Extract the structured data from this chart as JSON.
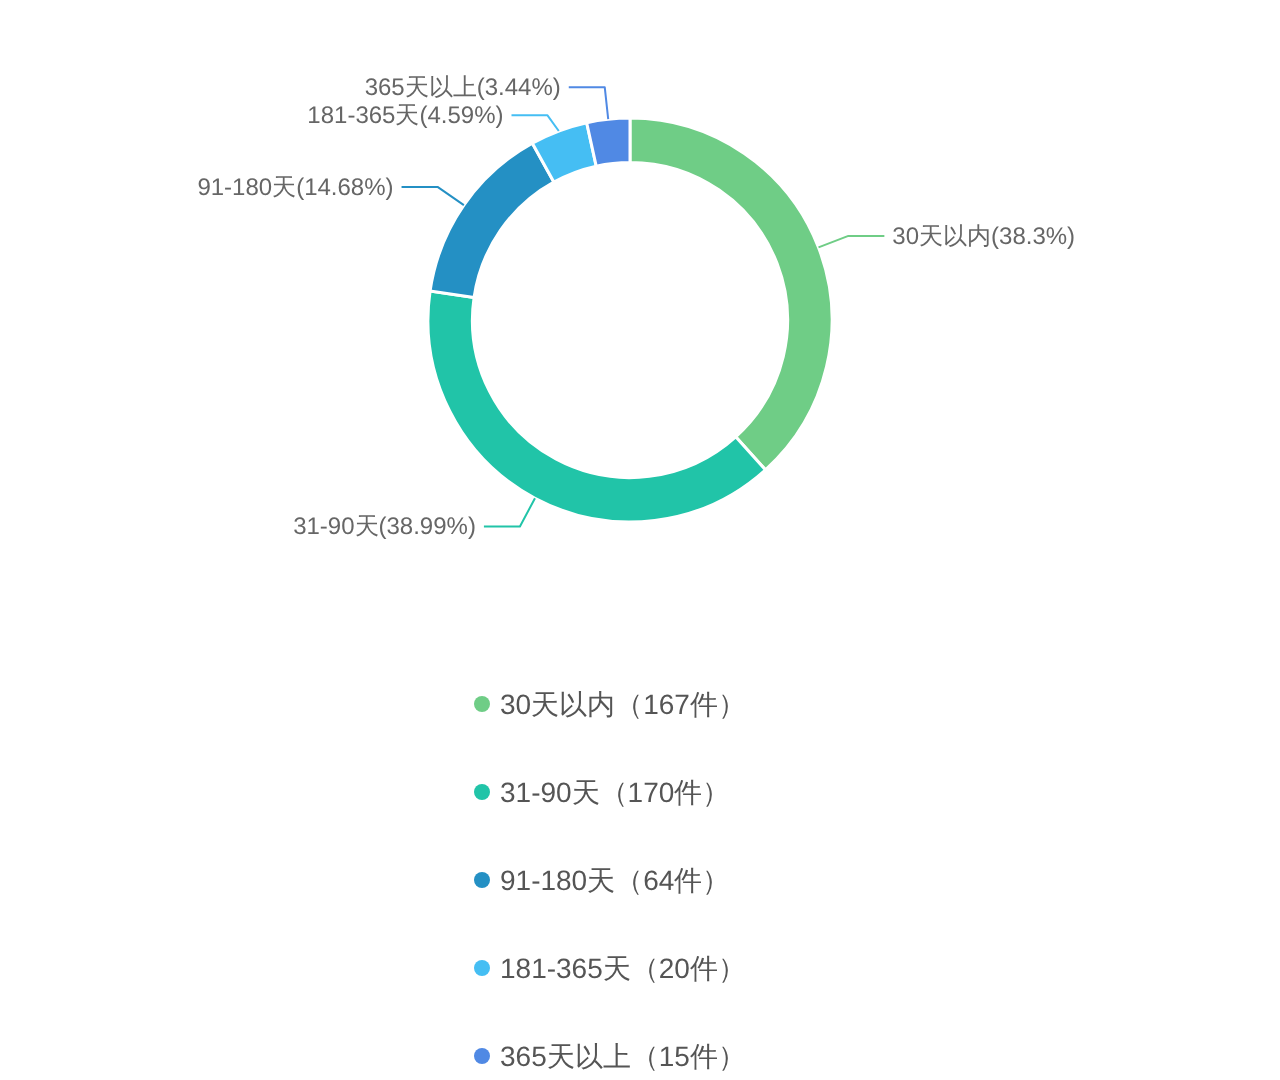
{
  "chart_data": {
    "type": "donut",
    "categories": [
      "30天以内（167件）",
      "31-90天（170件）",
      "91-180天（64件）",
      "181-365天（20件）",
      "365天以上（15件）"
    ],
    "values": [
      38.3,
      38.99,
      14.68,
      4.59,
      3.44
    ],
    "colors": [
      "#6fcd86",
      "#21c4a8",
      "#2490c4",
      "#45bef3",
      "#5089e4"
    ],
    "value_labels": [
      "30天以内(38.3%)",
      "31-90天(38.99%)",
      "91-180天(14.68%)",
      "181-365天(4.59%)",
      "365天以上(3.44%)"
    ],
    "legend": "bottom"
  }
}
